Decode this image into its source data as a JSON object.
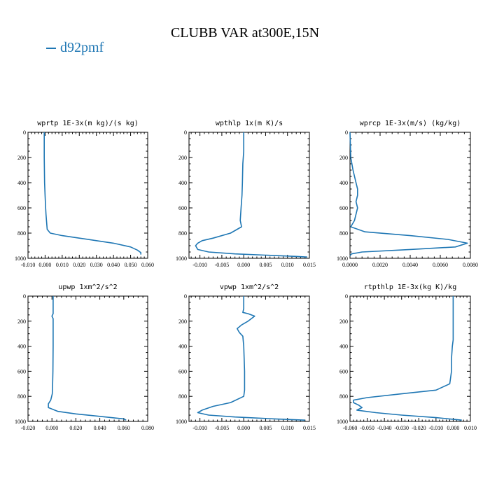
{
  "title": "CLUBB VAR at300E,15N",
  "legend": {
    "label": "d92pmf",
    "color": "#1f77b4"
  },
  "chart_data": [
    {
      "type": "line",
      "title": "wprtp  1E-3x(m kg)/(s kg)",
      "xlim": [
        -0.01,
        0.06
      ],
      "xticks": [
        -0.01,
        0.0,
        0.01,
        0.02,
        0.03,
        0.04,
        0.05,
        0.06
      ],
      "xtick_labels": [
        "-0.010",
        "0.000",
        "0.010",
        "0.020",
        "0.030",
        "0.040",
        "0.050",
        "0.060"
      ],
      "ylim": [
        1000,
        0
      ],
      "yticks": [
        0,
        200,
        400,
        600,
        800,
        1000
      ],
      "ytick_labels": [
        "0",
        "200",
        "400",
        "600",
        "800",
        "1000"
      ],
      "series": [
        {
          "color": "#1f77b4",
          "x": [
            -0.0005,
            -0.0005,
            -0.0003,
            0.0,
            0.0003,
            0.0005,
            0.0008,
            0.0012,
            0.003,
            0.01,
            0.02,
            0.03,
            0.04,
            0.05,
            0.054,
            0.056,
            0.056
          ],
          "y": [
            0,
            200,
            400,
            500,
            600,
            650,
            700,
            770,
            800,
            820,
            840,
            860,
            880,
            910,
            935,
            955,
            970
          ]
        }
      ]
    },
    {
      "type": "line",
      "title": "wpthlp  1x(m K)/s",
      "xlim": [
        -0.0125,
        0.015
      ],
      "xticks": [
        -0.01,
        -0.005,
        0.0,
        0.005,
        0.01,
        0.015
      ],
      "xtick_labels": [
        "-0.010",
        "-0.005",
        "0.000",
        "0.005",
        "0.010",
        "0.015"
      ],
      "ylim": [
        1000,
        0
      ],
      "yticks": [
        0,
        200,
        400,
        600,
        800,
        1000
      ],
      "ytick_labels": [
        "0",
        "200",
        "400",
        "600",
        "800",
        "1000"
      ],
      "series": [
        {
          "color": "#1f77b4",
          "x": [
            0.0,
            0.0,
            -0.0002,
            -0.0003,
            -0.0004,
            -0.0006,
            -0.0008,
            -0.0005,
            -0.003,
            -0.007,
            -0.0095,
            -0.0105,
            -0.011,
            -0.0105,
            -0.008,
            -0.002,
            0.005,
            0.012,
            0.0145
          ],
          "y": [
            0,
            150,
            250,
            400,
            500,
            600,
            700,
            750,
            800,
            840,
            860,
            880,
            900,
            930,
            950,
            965,
            975,
            985,
            990
          ]
        }
      ]
    },
    {
      "type": "line",
      "title": "wprcp  1E-3x(m/s) (kg/kg)",
      "xlim": [
        0.0,
        0.008
      ],
      "xticks": [
        0.0,
        0.002,
        0.004,
        0.006,
        0.008
      ],
      "xtick_labels": [
        "0.0000",
        "0.0020",
        "0.0040",
        "0.0060",
        "0.0080"
      ],
      "ylim": [
        1000,
        0
      ],
      "yticks": [
        0,
        200,
        400,
        600,
        800,
        1000
      ],
      "ytick_labels": [
        "0",
        "200",
        "400",
        "600",
        "800",
        "1000"
      ],
      "series": [
        {
          "color": "#1f77b4",
          "x": [
            0.0,
            5e-05,
            0.0002,
            0.0004,
            0.0005,
            0.0005,
            0.0004,
            0.0005,
            0.0003,
            5e-05,
            0.001,
            0.004,
            0.0065,
            0.0078,
            0.007,
            0.004,
            0.0008,
            0.0001,
            0.0
          ],
          "y": [
            0,
            200,
            300,
            400,
            450,
            500,
            550,
            600,
            700,
            750,
            790,
            820,
            850,
            880,
            910,
            930,
            950,
            965,
            980
          ]
        }
      ]
    },
    {
      "type": "line",
      "title": "upwp  1xm^2/s^2",
      "xlim": [
        -0.02,
        0.08
      ],
      "xticks": [
        -0.02,
        0.0,
        0.02,
        0.04,
        0.06,
        0.08
      ],
      "xtick_labels": [
        "-0.020",
        "0.000",
        "0.020",
        "0.040",
        "0.060",
        "0.080"
      ],
      "ylim": [
        1000,
        0
      ],
      "yticks": [
        0,
        200,
        400,
        600,
        800,
        1000
      ],
      "ytick_labels": [
        "0",
        "200",
        "400",
        "600",
        "800",
        "1000"
      ],
      "series": [
        {
          "color": "#1f77b4",
          "x": [
            0.001,
            0.001,
            0.0,
            0.001,
            0.001,
            0.0008,
            0.0006,
            0.0003,
            -0.001,
            -0.003,
            -0.003,
            0.005,
            0.02,
            0.04,
            0.06,
            0.062
          ],
          "y": [
            0,
            140,
            160,
            180,
            400,
            600,
            700,
            780,
            830,
            860,
            890,
            920,
            940,
            960,
            980,
            990
          ]
        }
      ]
    },
    {
      "type": "line",
      "title": "vpwp  1xm^2/s^2",
      "xlim": [
        -0.0125,
        0.015
      ],
      "xticks": [
        -0.01,
        -0.005,
        0.0,
        0.005,
        0.01,
        0.015
      ],
      "xtick_labels": [
        "-0.010",
        "-0.005",
        "0.000",
        "0.005",
        "0.010",
        "0.015"
      ],
      "ylim": [
        1000,
        0
      ],
      "yticks": [
        0,
        200,
        400,
        600,
        800,
        1000
      ],
      "ytick_labels": [
        "0",
        "200",
        "400",
        "600",
        "800",
        "1000"
      ],
      "series": [
        {
          "color": "#1f77b4",
          "x": [
            0.0,
            0.0,
            -0.0002,
            0.001,
            0.0025,
            0.001,
            -0.0005,
            -0.0015,
            -0.001,
            -0.0002,
            0.0,
            0.0002,
            0.0002,
            0.0,
            -0.003,
            -0.007,
            -0.0095,
            -0.0105,
            -0.008,
            -0.002,
            0.007,
            0.014
          ],
          "y": [
            0,
            100,
            130,
            140,
            160,
            200,
            230,
            260,
            290,
            320,
            400,
            600,
            750,
            800,
            850,
            880,
            910,
            930,
            950,
            965,
            980,
            990
          ]
        }
      ]
    },
    {
      "type": "line",
      "title": "rtpthlp  1E-3x(kg K)/kg",
      "xlim": [
        -0.06,
        0.01
      ],
      "xticks": [
        -0.06,
        -0.05,
        -0.04,
        -0.03,
        -0.02,
        -0.01,
        0.0,
        0.01
      ],
      "xtick_labels": [
        "-0.060",
        "-0.050",
        "-0.040",
        "-0.030",
        "-0.020",
        "-0.010",
        "0.000",
        "0.010"
      ],
      "ylim": [
        1000,
        0
      ],
      "yticks": [
        0,
        200,
        400,
        600,
        800,
        1000
      ],
      "ytick_labels": [
        "0",
        "200",
        "400",
        "600",
        "800",
        "1000"
      ],
      "series": [
        {
          "color": "#1f77b4",
          "x": [
            0.0,
            0.0,
            -0.0005,
            -0.001,
            -0.001,
            -0.002,
            -0.01,
            -0.03,
            -0.05,
            -0.058,
            -0.058,
            -0.055,
            -0.053,
            -0.056,
            -0.045,
            -0.03,
            -0.01,
            0.005
          ],
          "y": [
            0,
            350,
            400,
            500,
            600,
            700,
            750,
            780,
            810,
            830,
            850,
            870,
            890,
            910,
            930,
            950,
            970,
            990
          ]
        }
      ]
    }
  ]
}
